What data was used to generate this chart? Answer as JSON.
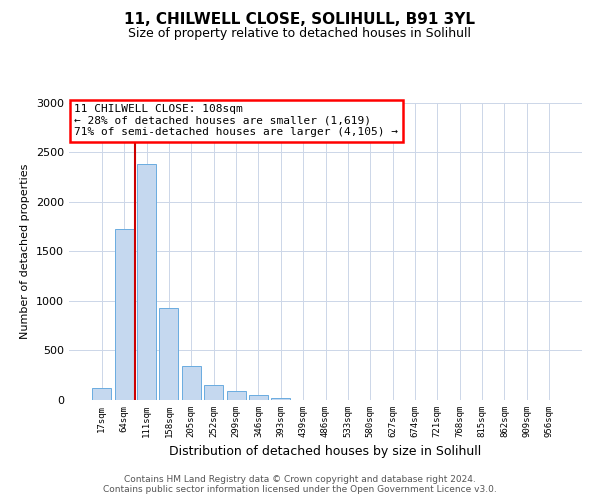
{
  "title": "11, CHILWELL CLOSE, SOLIHULL, B91 3YL",
  "subtitle": "Size of property relative to detached houses in Solihull",
  "xlabel": "Distribution of detached houses by size in Solihull",
  "ylabel": "Number of detached properties",
  "footer_line1": "Contains HM Land Registry data © Crown copyright and database right 2024.",
  "footer_line2": "Contains public sector information licensed under the Open Government Licence v3.0.",
  "bin_labels": [
    "17sqm",
    "64sqm",
    "111sqm",
    "158sqm",
    "205sqm",
    "252sqm",
    "299sqm",
    "346sqm",
    "393sqm",
    "439sqm",
    "486sqm",
    "533sqm",
    "580sqm",
    "627sqm",
    "674sqm",
    "721sqm",
    "768sqm",
    "815sqm",
    "862sqm",
    "909sqm",
    "956sqm"
  ],
  "bar_heights": [
    120,
    1720,
    2380,
    930,
    345,
    155,
    90,
    55,
    25,
    0,
    0,
    0,
    0,
    0,
    0,
    0,
    0,
    0,
    0,
    0,
    0
  ],
  "bar_color": "#c5d8ef",
  "bar_edgecolor": "#6aace0",
  "vline_color": "#cc0000",
  "vline_x": 1.5,
  "annotation_title": "11 CHILWELL CLOSE: 108sqm",
  "annotation_line1": "← 28% of detached houses are smaller (1,619)",
  "annotation_line2": "71% of semi-detached houses are larger (4,105) →",
  "ylim_max": 3000,
  "yticks": [
    0,
    500,
    1000,
    1500,
    2000,
    2500,
    3000
  ],
  "background_color": "#ffffff",
  "grid_color": "#ccd6e8",
  "title_fontsize": 11,
  "subtitle_fontsize": 9,
  "ylabel_fontsize": 8,
  "xlabel_fontsize": 9,
  "ytick_fontsize": 8,
  "xtick_fontsize": 6.5,
  "ann_fontsize": 8,
  "footer_fontsize": 6.5
}
